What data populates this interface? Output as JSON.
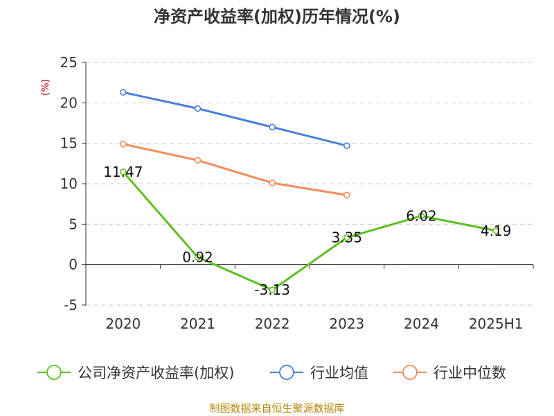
{
  "chart_data": {
    "type": "line",
    "title": "净资产收益率(加权)历年情况(%)",
    "ylabel": "(%)",
    "xlabel": "",
    "categories": [
      "2020",
      "2021",
      "2022",
      "2023",
      "2024",
      "2025H1"
    ],
    "ylim": [
      -5,
      25
    ],
    "yticks": [
      -5,
      0,
      5,
      10,
      15,
      20,
      25
    ],
    "grid": true,
    "legend_position": "bottom",
    "series": [
      {
        "name": "公司净资产收益率(加权)",
        "color": "#5cbf1f",
        "values": [
          11.47,
          0.92,
          -3.13,
          3.35,
          6.02,
          4.19
        ],
        "labels": [
          "11.47",
          "0.92",
          "-3.13",
          "3.35",
          "6.02",
          "4.19"
        ]
      },
      {
        "name": "行业均值",
        "color": "#4a7fd9",
        "values": [
          21.3,
          19.3,
          17.0,
          14.7,
          null,
          null
        ]
      },
      {
        "name": "行业中位数",
        "color": "#f58c5a",
        "values": [
          14.9,
          12.9,
          10.1,
          8.6,
          null,
          null
        ]
      }
    ],
    "source": "制图数据来自恒生聚源数据库"
  }
}
